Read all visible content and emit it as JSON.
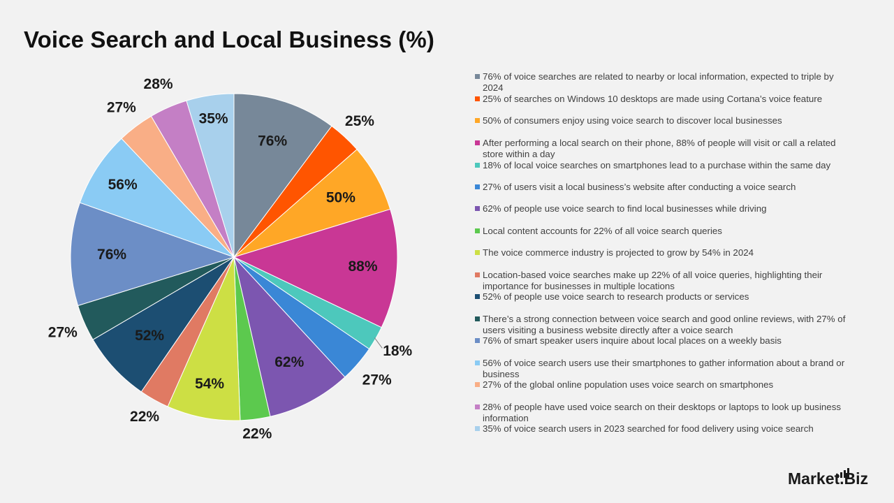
{
  "page": {
    "title": "Voice Search and Local Business (%)"
  },
  "brand": {
    "name": "Market.Biz"
  },
  "chart_data": {
    "type": "pie",
    "title": "Voice Search and Local Business (%)",
    "legend_position": "right",
    "slices": [
      {
        "label": "76% of voice searches are related to nearby or local information, expected to triple by 2024",
        "value": 76,
        "data_label": "76%",
        "color": "#778899"
      },
      {
        "label": "25% of searches on Windows 10 desktops are made using Cortana’s voice feature",
        "value": 25,
        "data_label": "25%",
        "color": "#ff5500"
      },
      {
        "label": "50% of consumers enjoy using voice search to discover local businesses",
        "value": 50,
        "data_label": "50%",
        "color": "#ffa726"
      },
      {
        "label": "After performing a local search on their phone, 88% of people will visit or call a related store within a day",
        "value": 88,
        "data_label": "88%",
        "color": "#c93795"
      },
      {
        "label": "18% of local voice searches on smartphones lead to a purchase within the same day",
        "value": 18,
        "data_label": "18%",
        "color": "#4dc8bc"
      },
      {
        "label": "27% of users visit a local business’s website after conducting a voice search",
        "value": 27,
        "data_label": "27%",
        "color": "#3a87d6"
      },
      {
        "label": "62% of people use voice search to find local businesses while driving",
        "value": 62,
        "data_label": "62%",
        "color": "#7c56b0"
      },
      {
        "label": "Local content accounts for 22% of all voice search queries",
        "value": 22,
        "data_label": "22%",
        "color": "#5cc94e"
      },
      {
        "label": "The voice commerce industry is projected to grow by 54% in 2024",
        "value": 54,
        "data_label": "54%",
        "color": "#cddf44"
      },
      {
        "label": "Location-based voice searches make up 22% of all voice queries, highlighting their importance for businesses in multiple locations",
        "value": 22,
        "data_label": "22%",
        "color": "#e07a63"
      },
      {
        "label": "52% of people use voice search to research products or services",
        "value": 52,
        "data_label": "52%",
        "color": "#1c4e72"
      },
      {
        "label": "There’s a strong connection between voice search and good online reviews, with 27% of users visiting a business website directly after a voice search",
        "value": 27,
        "data_label": "27%",
        "color": "#225a5c"
      },
      {
        "label": "76% of smart speaker users inquire about local places on a weekly basis",
        "value": 76,
        "data_label": "76%",
        "color": "#6c8ec6"
      },
      {
        "label": "56% of voice search users use their smartphones to gather information about a brand or business",
        "value": 56,
        "data_label": "56%",
        "color": "#8acbf4"
      },
      {
        "label": "27% of the global online population uses voice search on smartphones",
        "value": 27,
        "data_label": "27%",
        "color": "#f9ae86"
      },
      {
        "label": "28% of people have used voice search on their desktops or laptops to look up business information",
        "value": 28,
        "data_label": "28%",
        "color": "#c47fc5"
      },
      {
        "label": "35% of voice search users in 2023 searched for food delivery using voice search",
        "value": 35,
        "data_label": "35%",
        "color": "#a8d0ec"
      }
    ]
  }
}
